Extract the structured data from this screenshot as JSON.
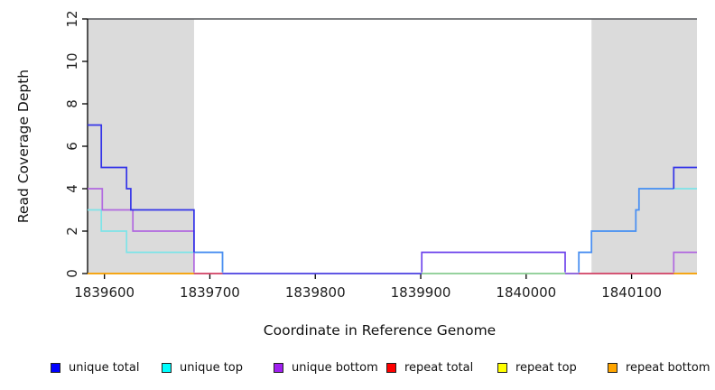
{
  "chart_data": {
    "type": "line",
    "subtype": "step-coverage",
    "title": "",
    "xlabel": "Coordinate in Reference Genome",
    "ylabel": "Read Coverage Depth",
    "xlim": [
      1839584,
      1840162
    ],
    "ylim": [
      0,
      12
    ],
    "x_ticks": [
      1839600,
      1839700,
      1839800,
      1839900,
      1840000,
      1840100
    ],
    "y_ticks": [
      0,
      2,
      4,
      6,
      8,
      10,
      12
    ],
    "grid": false,
    "top_line_y": 12,
    "top_line_color": "#54565a",
    "shaded_regions": [
      {
        "x1": 1839584,
        "x2": 1839685,
        "color": "#dbdbdb"
      },
      {
        "x1": 1840062,
        "x2": 1840162,
        "color": "#dbdbdb"
      }
    ],
    "series": [
      {
        "name": "unique total",
        "color": "#0000FF",
        "steps": [
          [
            1839584,
            7
          ],
          [
            1839597,
            5
          ],
          [
            1839621,
            4
          ],
          [
            1839625,
            3
          ],
          [
            1839685,
            1
          ],
          [
            1839712,
            0
          ],
          [
            1839901,
            1
          ],
          [
            1840037,
            0
          ],
          [
            1840050,
            1
          ],
          [
            1840062,
            2
          ],
          [
            1840104,
            3
          ],
          [
            1840107,
            4
          ],
          [
            1840140,
            5
          ],
          [
            1840162,
            5
          ]
        ]
      },
      {
        "name": "unique top",
        "color": "#00FFFF",
        "steps": [
          [
            1839584,
            3
          ],
          [
            1839597,
            2
          ],
          [
            1839621,
            1
          ],
          [
            1839712,
            0
          ],
          [
            1840050,
            1
          ],
          [
            1840062,
            2
          ],
          [
            1840104,
            3
          ],
          [
            1840107,
            4
          ],
          [
            1840162,
            4
          ]
        ]
      },
      {
        "name": "unique bottom",
        "color": "#A020F0",
        "steps": [
          [
            1839584,
            4
          ],
          [
            1839598,
            3
          ],
          [
            1839627,
            2
          ],
          [
            1839685,
            0
          ],
          [
            1839901,
            1
          ],
          [
            1840037,
            0
          ],
          [
            1840140,
            1
          ],
          [
            1840162,
            1
          ]
        ]
      },
      {
        "name": "repeat total",
        "color": "#FF0000",
        "steps": [
          [
            1839584,
            0
          ],
          [
            1840162,
            0
          ]
        ]
      },
      {
        "name": "repeat top",
        "color": "#FFFF00",
        "steps": [
          [
            1839584,
            0
          ],
          [
            1840162,
            0
          ]
        ]
      },
      {
        "name": "repeat bottom",
        "color": "#FFA500",
        "steps": [
          [
            1839584,
            0
          ],
          [
            1840162,
            0
          ]
        ]
      }
    ],
    "render_polylines": [
      {
        "name": "baseline-orange-left",
        "color": "#FFA500",
        "points": [
          [
            1839584,
            0
          ],
          [
            1839685,
            0
          ]
        ]
      },
      {
        "name": "baseline-red-left",
        "color": "#D9486B",
        "points": [
          [
            1839685,
            0
          ],
          [
            1839712,
            0
          ]
        ]
      },
      {
        "name": "baseline-blueviolet",
        "color": "#5348EA",
        "points": [
          [
            1839712,
            0
          ],
          [
            1839901,
            0
          ]
        ]
      },
      {
        "name": "baseline-green",
        "color": "#90D59A",
        "points": [
          [
            1839901,
            0
          ],
          [
            1840037,
            0
          ]
        ]
      },
      {
        "name": "baseline-violet",
        "color": "#8A5BE0",
        "points": [
          [
            1840037,
            0
          ],
          [
            1840050,
            0
          ]
        ]
      },
      {
        "name": "baseline-red-right",
        "color": "#D9486B",
        "points": [
          [
            1840050,
            0
          ],
          [
            1840140,
            0
          ]
        ]
      },
      {
        "name": "baseline-orange-right",
        "color": "#FFA500",
        "points": [
          [
            1840140,
            0
          ],
          [
            1840162,
            0
          ]
        ]
      },
      {
        "name": "cyan-left",
        "color": "#7EE4E8",
        "points": [
          [
            1839584,
            3
          ],
          [
            1839597,
            3
          ],
          [
            1839597,
            2
          ],
          [
            1839621,
            2
          ],
          [
            1839621,
            1
          ],
          [
            1839712,
            1
          ],
          [
            1839712,
            0.06
          ]
        ]
      },
      {
        "name": "cyan-right",
        "color": "#7EE4E8",
        "points": [
          [
            1840050,
            0.06
          ],
          [
            1840050,
            1
          ],
          [
            1840062,
            1
          ],
          [
            1840062,
            2
          ],
          [
            1840104,
            2
          ],
          [
            1840104,
            3
          ],
          [
            1840107,
            3
          ],
          [
            1840107,
            4
          ],
          [
            1840162,
            4
          ]
        ]
      },
      {
        "name": "purple-left",
        "color": "#B168E0",
        "points": [
          [
            1839584,
            4
          ],
          [
            1839598,
            4
          ],
          [
            1839598,
            3
          ],
          [
            1839627,
            3
          ],
          [
            1839627,
            2
          ],
          [
            1839685,
            2
          ],
          [
            1839685,
            0.06
          ]
        ]
      },
      {
        "name": "purple-right",
        "color": "#B168E0",
        "points": [
          [
            1840140,
            0.06
          ],
          [
            1840140,
            1
          ],
          [
            1840162,
            1
          ]
        ]
      },
      {
        "name": "purple-blue-mid",
        "color": "#6F45EC",
        "points": [
          [
            1839901,
            0.06
          ],
          [
            1839901,
            1
          ],
          [
            1840037,
            1
          ],
          [
            1840037,
            0.06
          ]
        ]
      },
      {
        "name": "brightblue-left",
        "color": "#4D8DF2",
        "points": [
          [
            1839685,
            1
          ],
          [
            1839712,
            1
          ],
          [
            1839712,
            0.06
          ]
        ]
      },
      {
        "name": "brightblue-right",
        "color": "#4D8DF2",
        "points": [
          [
            1840050,
            0.06
          ],
          [
            1840050,
            1
          ],
          [
            1840062,
            1
          ],
          [
            1840062,
            2
          ],
          [
            1840104,
            2
          ],
          [
            1840104,
            3
          ],
          [
            1840107,
            3
          ],
          [
            1840107,
            4
          ],
          [
            1840140,
            4
          ]
        ]
      },
      {
        "name": "darkblue-left",
        "color": "#3434E8",
        "points": [
          [
            1839584,
            7
          ],
          [
            1839597,
            7
          ],
          [
            1839597,
            5
          ],
          [
            1839621,
            5
          ],
          [
            1839621,
            4
          ],
          [
            1839625,
            4
          ],
          [
            1839625,
            3
          ],
          [
            1839685,
            3
          ],
          [
            1839685,
            1
          ]
        ]
      },
      {
        "name": "darkblue-right",
        "color": "#3434E8",
        "points": [
          [
            1840140,
            4
          ],
          [
            1840140,
            5
          ],
          [
            1840162,
            5
          ]
        ]
      }
    ]
  },
  "legend": {
    "items": [
      {
        "label": "unique total",
        "color": "#0000FF"
      },
      {
        "label": "unique top",
        "color": "#00FFFF"
      },
      {
        "label": "unique bottom",
        "color": "#A020F0"
      },
      {
        "label": "repeat total",
        "color": "#FF0000"
      },
      {
        "label": "repeat top",
        "color": "#FFFF00"
      },
      {
        "label": "repeat bottom",
        "color": "#FFA500"
      }
    ]
  }
}
